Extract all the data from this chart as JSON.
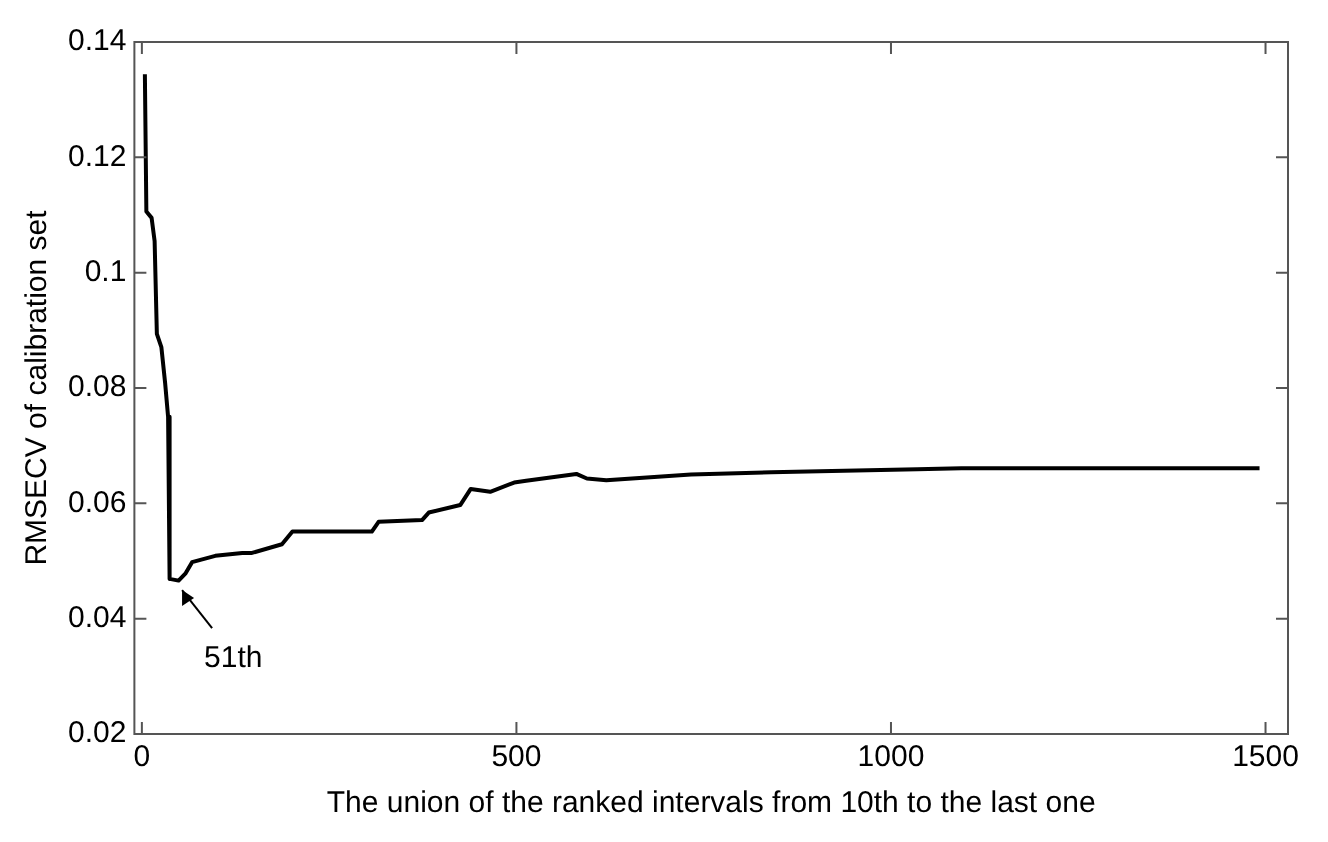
{
  "chart_data": {
    "type": "line",
    "xlabel": "The union of the ranked intervals from 10th to the last one",
    "ylabel": "RMSECV of calibration set",
    "x": [
      4,
      6,
      13,
      17,
      20,
      26,
      31,
      35,
      37,
      49,
      58,
      67,
      98,
      134,
      147,
      187,
      201,
      307,
      316,
      374,
      383,
      425,
      439,
      465,
      497,
      513,
      580,
      594,
      620,
      733,
      840,
      1035,
      1094,
      1492
    ],
    "series": [
      {
        "color": "#000000",
        "values": [
          0.1344,
          0.1106,
          0.1095,
          0.1055,
          0.0894,
          0.0871,
          0.0809,
          0.075,
          0.0469,
          0.0466,
          0.0478,
          0.0498,
          0.0509,
          0.0514,
          0.0514,
          0.0529,
          0.0551,
          0.0551,
          0.0568,
          0.0571,
          0.0584,
          0.0597,
          0.0625,
          0.062,
          0.0636,
          0.0639,
          0.0651,
          0.0643,
          0.064,
          0.065,
          0.0654,
          0.0659,
          0.0661,
          0.0661
        ]
      }
    ],
    "xlim": [
      -10,
      1530
    ],
    "xticks": [
      0,
      500,
      1000,
      1500
    ],
    "ylim": [
      0.02,
      0.14
    ],
    "yticks": [
      0.02,
      0.04,
      0.06,
      0.08,
      0.1,
      0.12,
      0.14
    ],
    "grid": false,
    "legend": false,
    "marker": "none",
    "line_style": "solid",
    "annotations": [
      {
        "text": "51th",
        "x": 51,
        "y": 0.046
      }
    ]
  }
}
